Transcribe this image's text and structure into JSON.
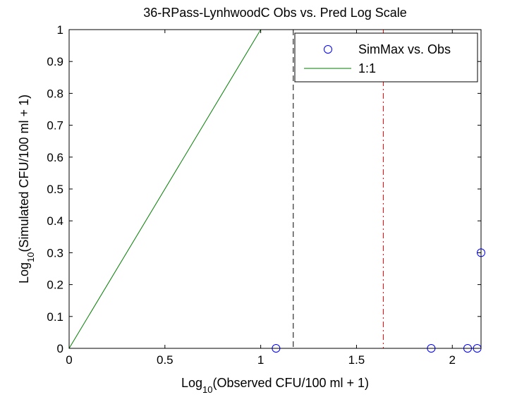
{
  "chart_data": {
    "type": "scatter",
    "title": "36-RPass-LynhwoodC Obs vs. Pred Log Scale",
    "xlabel": {
      "prefix": "Log",
      "sub": "10",
      "suffix": "(Observed CFU/100 ml + 1)"
    },
    "ylabel": {
      "prefix": "Log",
      "sub": "10",
      "suffix": "(Simulated CFU/100 ml + 1)"
    },
    "xlim": [
      0,
      2.15
    ],
    "ylim": [
      0,
      1
    ],
    "xticks": [
      0,
      0.5,
      1,
      1.5,
      2
    ],
    "xtick_labels": [
      "0",
      "0.5",
      "1",
      "1.5",
      "2"
    ],
    "yticks": [
      0,
      0.1,
      0.2,
      0.3,
      0.4,
      0.5,
      0.6,
      0.7,
      0.8,
      0.9,
      1
    ],
    "ytick_labels": [
      "0",
      "0.1",
      "0.2",
      "0.3",
      "0.4",
      "0.5",
      "0.6",
      "0.7",
      "0.8",
      "0.9",
      "1"
    ],
    "grid": false,
    "legend_position": "top-right",
    "series": [
      {
        "name": "SimMax vs. Obs",
        "kind": "markers",
        "marker": "circle",
        "color": "#0000ff",
        "x": [
          1.08,
          1.89,
          2.08,
          2.13,
          2.15
        ],
        "y": [
          0,
          0,
          0,
          0,
          0.3
        ]
      },
      {
        "name": "1:1",
        "kind": "line",
        "color": "#007f00",
        "x": [
          0,
          1
        ],
        "y": [
          0,
          1
        ]
      }
    ],
    "reference_lines": [
      {
        "orientation": "vertical",
        "x": 1.17,
        "style": "dashed",
        "color": "#000000"
      },
      {
        "orientation": "vertical",
        "x": 1.64,
        "style": "dash-dot",
        "color": "#ff0000"
      }
    ]
  }
}
